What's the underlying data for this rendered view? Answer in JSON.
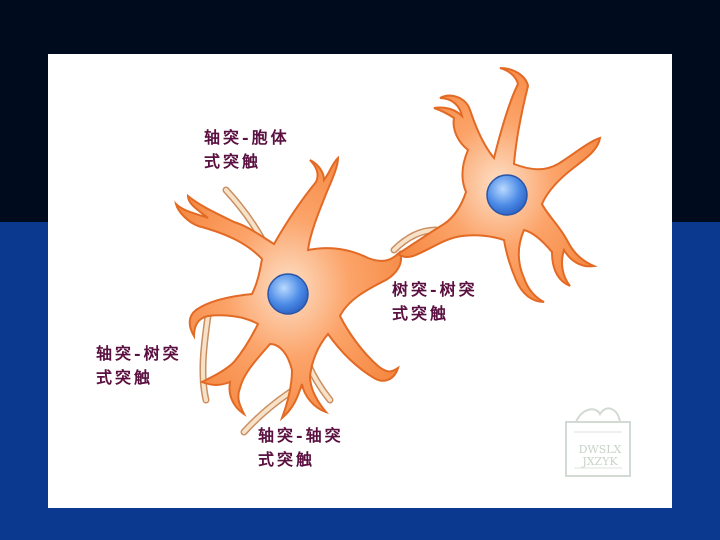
{
  "labels": {
    "axosomatic": "轴突-胞体\n式突触",
    "axodendritic_left": "轴突-树突\n式突触",
    "axoaxonic": "轴突-轴突\n式突触",
    "axodendritic_right": "树突-树突\n式突触"
  },
  "watermark": {
    "line1": "DWSLX",
    "line2": "JXZYK"
  },
  "colors": {
    "background_top": "#000c1e",
    "background_bottom": "#0b3990",
    "cell_fill": "#fb9c5c",
    "cell_edge": "#e8702c",
    "nucleus": "#3f7fe0",
    "axon_terminal": "#e8c9a4",
    "label_text": "#5a1040"
  }
}
